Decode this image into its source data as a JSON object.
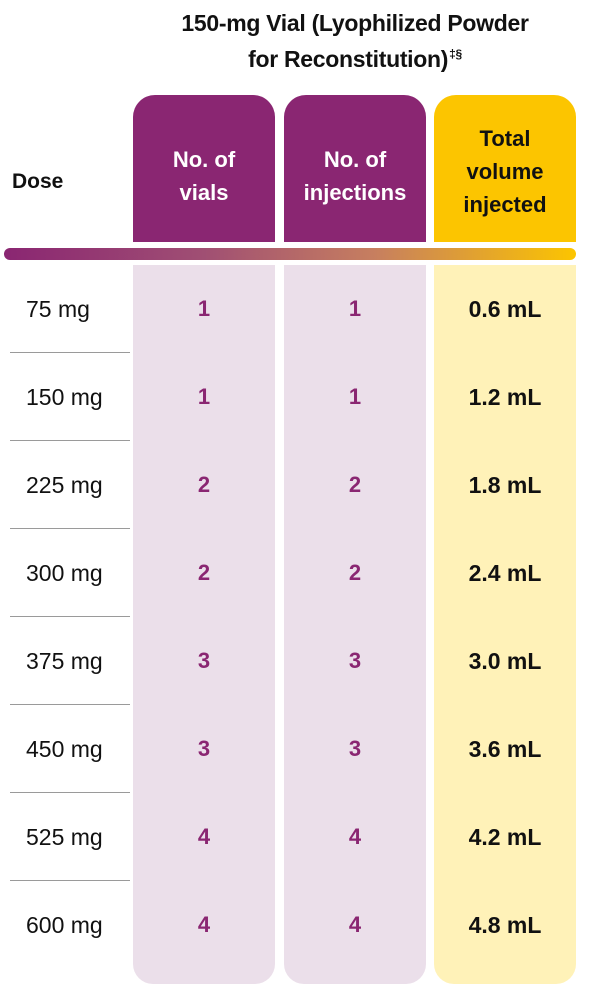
{
  "title": {
    "line1": "150-mg Vial (Lyophilized Powder",
    "line2": "for Reconstitution)",
    "footnote_marks": "‡§"
  },
  "headers": {
    "dose": "Dose",
    "vials": "No. of\nvials",
    "injections": "No. of\ninjections",
    "volume": "Total\nvolume\ninjected"
  },
  "colors": {
    "purple": "#8a2672",
    "yellow": "#fcc500",
    "purple_light": "#ebdfea",
    "yellow_light": "#fff2b8"
  },
  "rows": [
    {
      "dose": "75 mg",
      "vials": "1",
      "injections": "1",
      "volume": "0.6 mL"
    },
    {
      "dose": "150 mg",
      "vials": "1",
      "injections": "1",
      "volume": "1.2 mL"
    },
    {
      "dose": "225 mg",
      "vials": "2",
      "injections": "2",
      "volume": "1.8 mL"
    },
    {
      "dose": "300 mg",
      "vials": "2",
      "injections": "2",
      "volume": "2.4 mL"
    },
    {
      "dose": "375 mg",
      "vials": "3",
      "injections": "3",
      "volume": "3.0 mL"
    },
    {
      "dose": "450 mg",
      "vials": "3",
      "injections": "3",
      "volume": "3.6 mL"
    },
    {
      "dose": "525 mg",
      "vials": "4",
      "injections": "4",
      "volume": "4.2 mL"
    },
    {
      "dose": "600 mg",
      "vials": "4",
      "injections": "4",
      "volume": "4.8 mL"
    }
  ]
}
